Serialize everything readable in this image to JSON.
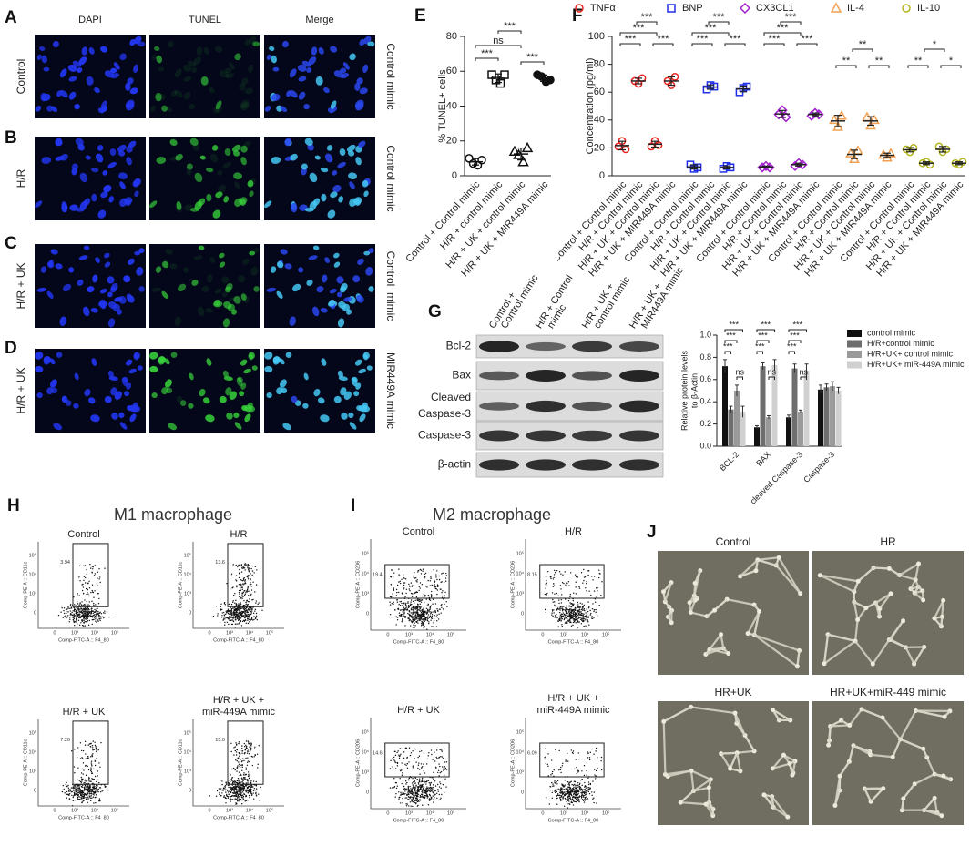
{
  "panel_labels": [
    "A",
    "B",
    "C",
    "D",
    "E",
    "F",
    "G",
    "H",
    "I",
    "J"
  ],
  "microscopy": {
    "columns": [
      "DAPI",
      "TUNEL",
      "Merge"
    ],
    "rows": [
      {
        "label": "Control",
        "side": "Control mimic"
      },
      {
        "label": "H/R",
        "side": "Control mimic"
      },
      {
        "label": "H/R + UK",
        "side": "Control  mimic"
      },
      {
        "label": "H/R + UK",
        "side": "MIR449A mimic"
      }
    ]
  },
  "chart_data": [
    {
      "type": "dot",
      "y_label": "% TUNEL+ cells",
      "categories": [
        "Control + Control mimic",
        "H/R + control mimic",
        "H/R + UK + control mimic",
        "H/R + UK + MIR449A mimic"
      ],
      "values": [
        [
          10,
          7,
          6,
          9
        ],
        [
          58,
          55,
          53,
          58
        ],
        [
          14,
          12,
          8,
          16
        ],
        [
          58,
          57,
          54,
          55
        ]
      ],
      "markers": [
        "circle",
        "square",
        "triangle",
        "circle-filled"
      ],
      "color": "#111111",
      "significance": [
        "***",
        "ns",
        "***",
        "***"
      ],
      "ylim": [
        0,
        80
      ],
      "yticks": [
        0,
        20,
        40,
        60,
        80
      ]
    },
    {
      "type": "dot",
      "y_label": "Concentration (pg/ml)",
      "categories": [
        "Control + Control mimic",
        "H/R + Control mimic",
        "H/R + UK + Control mimic",
        "H/R + UK + MIR449A mimic"
      ],
      "series": [
        {
          "name": "TNFα",
          "color": "#e8231f",
          "marker": "circle",
          "values": [
            [
              21,
              25,
              19
            ],
            [
              68,
              66,
              70
            ],
            [
              21,
              25,
              22
            ],
            [
              68,
              65,
              71
            ]
          ],
          "significance": [
            "***",
            "***",
            "***",
            "***"
          ]
        },
        {
          "name": "BNP",
          "color": "#1f2ee8",
          "marker": "square",
          "values": [
            [
              8,
              5,
              6
            ],
            [
              62,
              65,
              64
            ],
            [
              5,
              7,
              6
            ],
            [
              60,
              63,
              64
            ]
          ],
          "significance": [
            "***",
            "***",
            "***",
            "***"
          ]
        },
        {
          "name": "CX3CL1",
          "color": "#a21fcf",
          "marker": "diamond",
          "values": [
            [
              6,
              7,
              6
            ],
            [
              44,
              47,
              42
            ],
            [
              7,
              9,
              8
            ],
            [
              43,
              45,
              44
            ]
          ],
          "significance": [
            "***",
            "***",
            "***",
            "***"
          ]
        },
        {
          "name": "IL-4",
          "color": "#f0a050",
          "marker": "triangle",
          "values": [
            [
              40,
              35,
              43
            ],
            [
              16,
              12,
              18
            ],
            [
              42,
              36,
              40
            ],
            [
              15,
              13,
              16
            ]
          ],
          "significance": [
            "**",
            "**",
            "**"
          ]
        },
        {
          "name": "IL-10",
          "color": "#b5b520",
          "marker": "circle",
          "values": [
            [
              19,
              17,
              20
            ],
            [
              9,
              10,
              8
            ],
            [
              21,
              17,
              19
            ],
            [
              9,
              8,
              10
            ]
          ],
          "significance": [
            "**",
            "*",
            "*"
          ]
        }
      ],
      "ylim": [
        0,
        100
      ],
      "yticks": [
        0,
        20,
        40,
        60,
        80,
        100
      ]
    },
    {
      "type": "bar",
      "y_label": [
        "Relative protein levels",
        "to β-Actin"
      ],
      "categories": [
        "BCL-2",
        "BAX",
        "cleaved Caspase-3",
        "Caspase-3"
      ],
      "series": [
        {
          "name": "control mimic",
          "color": "#111111",
          "values": [
            0.72,
            0.17,
            0.26,
            0.51
          ],
          "errors": [
            0.06,
            0.015,
            0.02,
            0.04
          ]
        },
        {
          "name": "H/R+control mimic",
          "color": "#6e6e6e",
          "values": [
            0.33,
            0.72,
            0.7,
            0.53
          ],
          "errors": [
            0.03,
            0.03,
            0.04,
            0.03
          ]
        },
        {
          "name": "H/R+UK+ control mimic",
          "color": "#9a9a9a",
          "values": [
            0.5,
            0.26,
            0.31,
            0.54
          ],
          "errors": [
            0.05,
            0.015,
            0.015,
            0.04
          ]
        },
        {
          "name": "H/R+UK+ miR-449A mimic",
          "color": "#d0d0d0",
          "values": [
            0.31,
            0.73,
            0.68,
            0.5
          ],
          "errors": [
            0.05,
            0.05,
            0.06,
            0.03
          ]
        }
      ],
      "significance": [
        [
          "***",
          "***",
          "***",
          "ns"
        ],
        [
          "***",
          "***",
          "***",
          "ns"
        ],
        [
          "***",
          "***",
          "***",
          "ns"
        ]
      ],
      "ylim": [
        0,
        1
      ],
      "yticks": [
        {
          "value": 0,
          "label": "0.0"
        },
        0.2,
        0.4,
        0.6,
        0.8,
        {
          "value": 1,
          "label": "1.0"
        }
      ]
    }
  ],
  "western_blot": {
    "columns": [
      [
        "Control +",
        "Control mimic"
      ],
      [
        "H/R + Control",
        "mimic"
      ],
      [
        "H/R + UK +",
        "control mimic"
      ],
      [
        "H/R + UK +",
        "MIR449A mimic"
      ]
    ],
    "rows": [
      [
        "Bcl-2"
      ],
      [
        "Bax"
      ],
      [
        "Cleaved",
        "Caspase-3"
      ],
      [
        "Caspase-3"
      ],
      [
        "β-actin"
      ]
    ]
  },
  "flow_cytometry": [
    {
      "title": "M1 macrophage",
      "y_label": "Comp-PE-A :: CD11c",
      "x_label": "Comp-FITC-A :: F4_80",
      "ticks": [
        "0",
        "10³",
        "10⁴",
        "10⁵"
      ],
      "plots": [
        {
          "title": [
            "Control"
          ],
          "gate": "3.94"
        },
        {
          "title": [
            "H/R"
          ],
          "gate": "13.6"
        },
        {
          "title": [
            "H/R + UK"
          ],
          "gate": "7.26"
        },
        {
          "title": [
            "H/R + UK +",
            "miR-449A mimic"
          ],
          "gate": "15.0"
        }
      ]
    },
    {
      "title": "M2 macrophage",
      "y_label": "Comp-PE-A :: CD206",
      "x_label": "Comp-FITC-A :: F4_80",
      "ticks": [
        "0",
        "10³",
        "10⁴",
        "10⁵"
      ],
      "plots": [
        {
          "title": [
            "Control"
          ],
          "gate": "19.4"
        },
        {
          "title": [
            "H/R"
          ],
          "gate": "8.15"
        },
        {
          "title": [
            "H/R + UK"
          ],
          "gate": "14.6"
        },
        {
          "title": [
            "H/R + UK +",
            "miR-449A mimic"
          ],
          "gate": "6.09"
        }
      ]
    }
  ],
  "tube_formation": {
    "titles": [
      "Control",
      "HR",
      "HR+UK",
      "HR+UK+miR-449 mimic"
    ]
  }
}
